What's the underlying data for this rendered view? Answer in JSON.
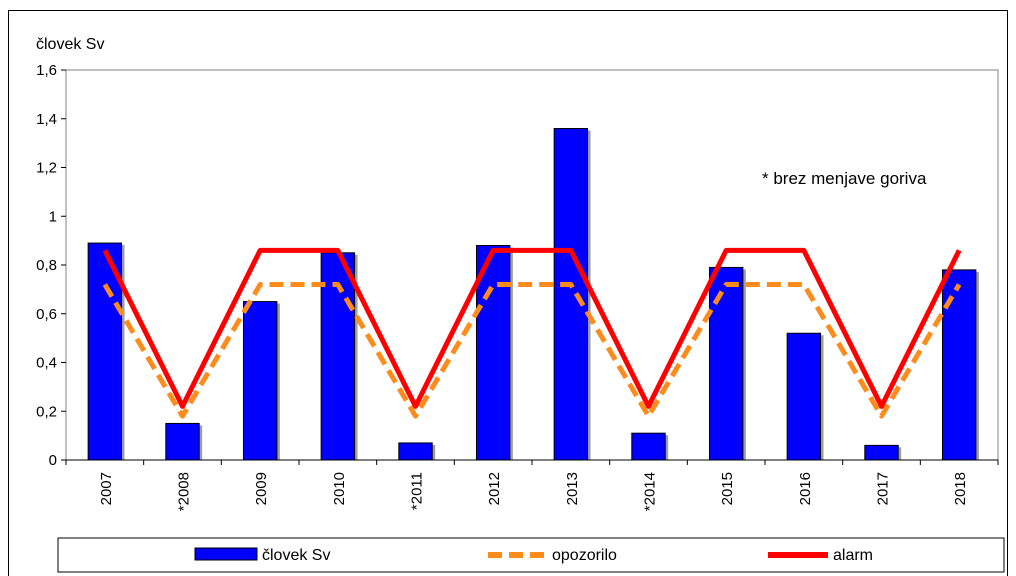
{
  "chart_data": {
    "type": "bar",
    "ylabel": "človek Sv",
    "annotation": "* brez menjave goriva",
    "ylim": [
      0,
      1.6
    ],
    "yticks": [
      "0",
      "0,2",
      "0,4",
      "0,6",
      "0,8",
      "1",
      "1,2",
      "1,4",
      "1,6"
    ],
    "categories": [
      "2007",
      "*2008",
      "2009",
      "2010",
      "*2011",
      "2012",
      "2013",
      "*2014",
      "2015",
      "2016",
      "2017",
      "2018"
    ],
    "series": [
      {
        "name": "človek Sv",
        "kind": "bar",
        "color": "#0000ff",
        "values": [
          0.89,
          0.15,
          0.65,
          0.85,
          0.07,
          0.88,
          1.36,
          0.11,
          0.79,
          0.52,
          0.06,
          0.78
        ]
      },
      {
        "name": "opozorilo",
        "kind": "line",
        "style": "dashed",
        "color": "#ff8c1a",
        "values": [
          0.72,
          0.18,
          0.72,
          0.72,
          0.18,
          0.72,
          0.72,
          0.18,
          0.72,
          0.72,
          0.18,
          0.72
        ]
      },
      {
        "name": "alarm",
        "kind": "line",
        "style": "solid",
        "color": "#ff0000",
        "values": [
          0.86,
          0.22,
          0.86,
          0.86,
          0.22,
          0.86,
          0.86,
          0.22,
          0.86,
          0.86,
          0.22,
          0.86
        ]
      }
    ],
    "grid": false,
    "legend": "bottom"
  }
}
